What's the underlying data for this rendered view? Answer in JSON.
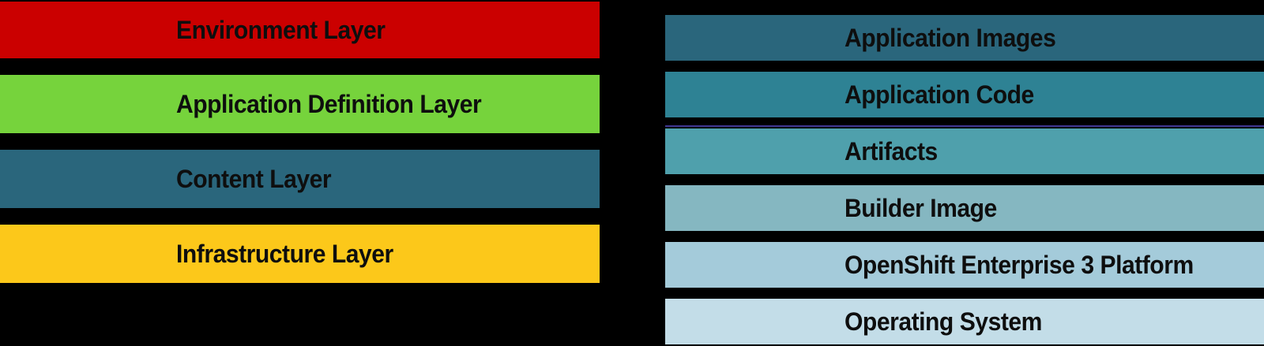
{
  "canvas": {
    "background": "#000000",
    "text_color": "#0e0e0e"
  },
  "left_column": {
    "items": [
      {
        "label": "Environment Layer",
        "color": "#cb0000"
      },
      {
        "label": "Application Definition Layer",
        "color": "#76d33c"
      },
      {
        "label": "Content Layer",
        "color": "#2a667c"
      },
      {
        "label": "Infrastructure Layer",
        "color": "#fcc81a"
      }
    ]
  },
  "right_column": {
    "items": [
      {
        "label": "Application Images",
        "color": "#2a667c"
      },
      {
        "label": "Application Code",
        "color": "#2e8294"
      },
      {
        "label": "Artifacts",
        "color": "#4fa0ac",
        "accent_line_color": "#3f3590"
      },
      {
        "label": "Builder Image",
        "color": "#85b7c1"
      },
      {
        "label": "OpenShift Enterprise 3 Platform",
        "color": "#a4cbda"
      },
      {
        "label": "Operating System",
        "color": "#c3dde8"
      }
    ]
  }
}
